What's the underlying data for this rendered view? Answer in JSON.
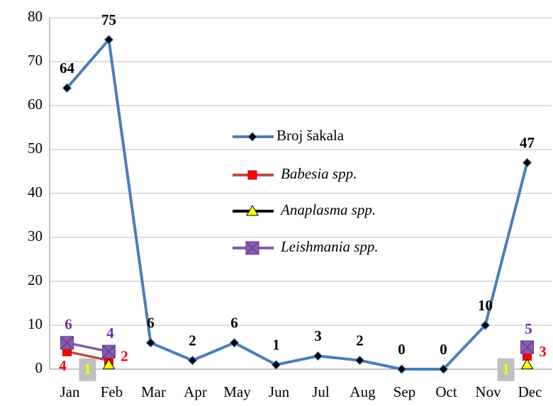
{
  "chart_data": {
    "type": "line",
    "categories": [
      "Jan",
      "Feb",
      "Mar",
      "Apr",
      "May",
      "Jun",
      "Jul",
      "Aug",
      "Sep",
      "Oct",
      "Nov",
      "Dec"
    ],
    "series": [
      {
        "name": "Broj šakala",
        "color": "#4a7ebb",
        "marker_color": "#000000",
        "values": [
          64,
          75,
          6,
          2,
          6,
          1,
          3,
          2,
          0,
          0,
          10,
          47
        ]
      },
      {
        "name": "Babesia spp.",
        "color": "#be4b48",
        "marker_color": "#ff0000",
        "values": [
          4,
          2,
          null,
          null,
          null,
          null,
          null,
          null,
          null,
          null,
          null,
          3
        ]
      },
      {
        "name": "Anaplasma spp.",
        "color": "#000000",
        "marker_color": "#ffff00",
        "values": [
          null,
          1,
          null,
          null,
          null,
          null,
          null,
          null,
          null,
          null,
          null,
          1
        ]
      },
      {
        "name": "Leishmania spp.",
        "color": "#7d60a0",
        "marker_color": "#7030a0",
        "values": [
          6,
          4,
          null,
          null,
          null,
          null,
          null,
          null,
          null,
          null,
          null,
          5
        ]
      }
    ],
    "ylim": [
      0,
      80
    ],
    "yticks": [
      0,
      10,
      20,
      30,
      40,
      50,
      60,
      70,
      80
    ],
    "grid": true,
    "legend": "center"
  }
}
